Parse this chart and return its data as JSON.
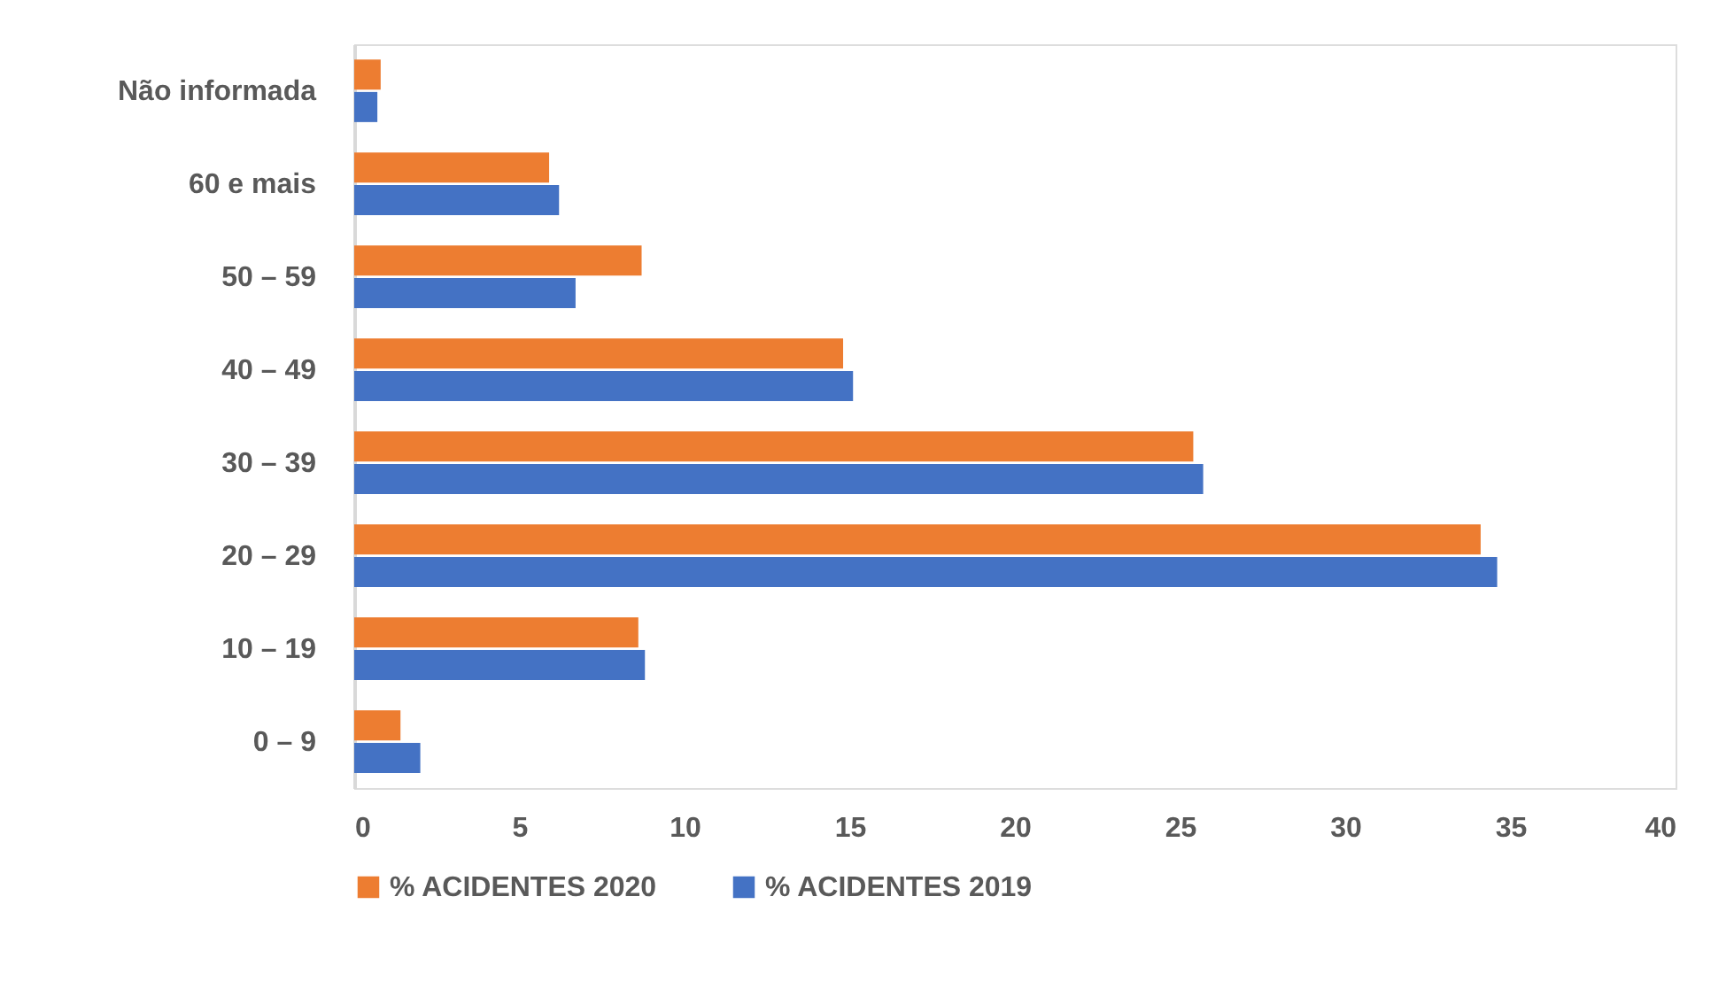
{
  "chart_data": {
    "type": "bar",
    "orientation": "horizontal",
    "categories": [
      "Não informada",
      "60 e mais",
      "50 – 59",
      "40 – 49",
      "30 – 39",
      "20 – 29",
      "10 – 19",
      "0 – 9"
    ],
    "series": [
      {
        "name": "% ACIDENTES 2020",
        "color": "#ed7d31",
        "values": [
          0.8,
          5.9,
          8.7,
          14.8,
          25.4,
          34.1,
          8.6,
          1.4
        ]
      },
      {
        "name": "% ACIDENTES 2019",
        "color": "#4472c4",
        "values": [
          0.7,
          6.2,
          6.7,
          15.1,
          25.7,
          34.6,
          8.8,
          2.0
        ]
      }
    ],
    "xlim": [
      0,
      40
    ],
    "xticks": [
      0,
      5,
      10,
      15,
      20,
      25,
      30,
      35,
      40
    ],
    "grid": false,
    "legend": "bottom"
  }
}
